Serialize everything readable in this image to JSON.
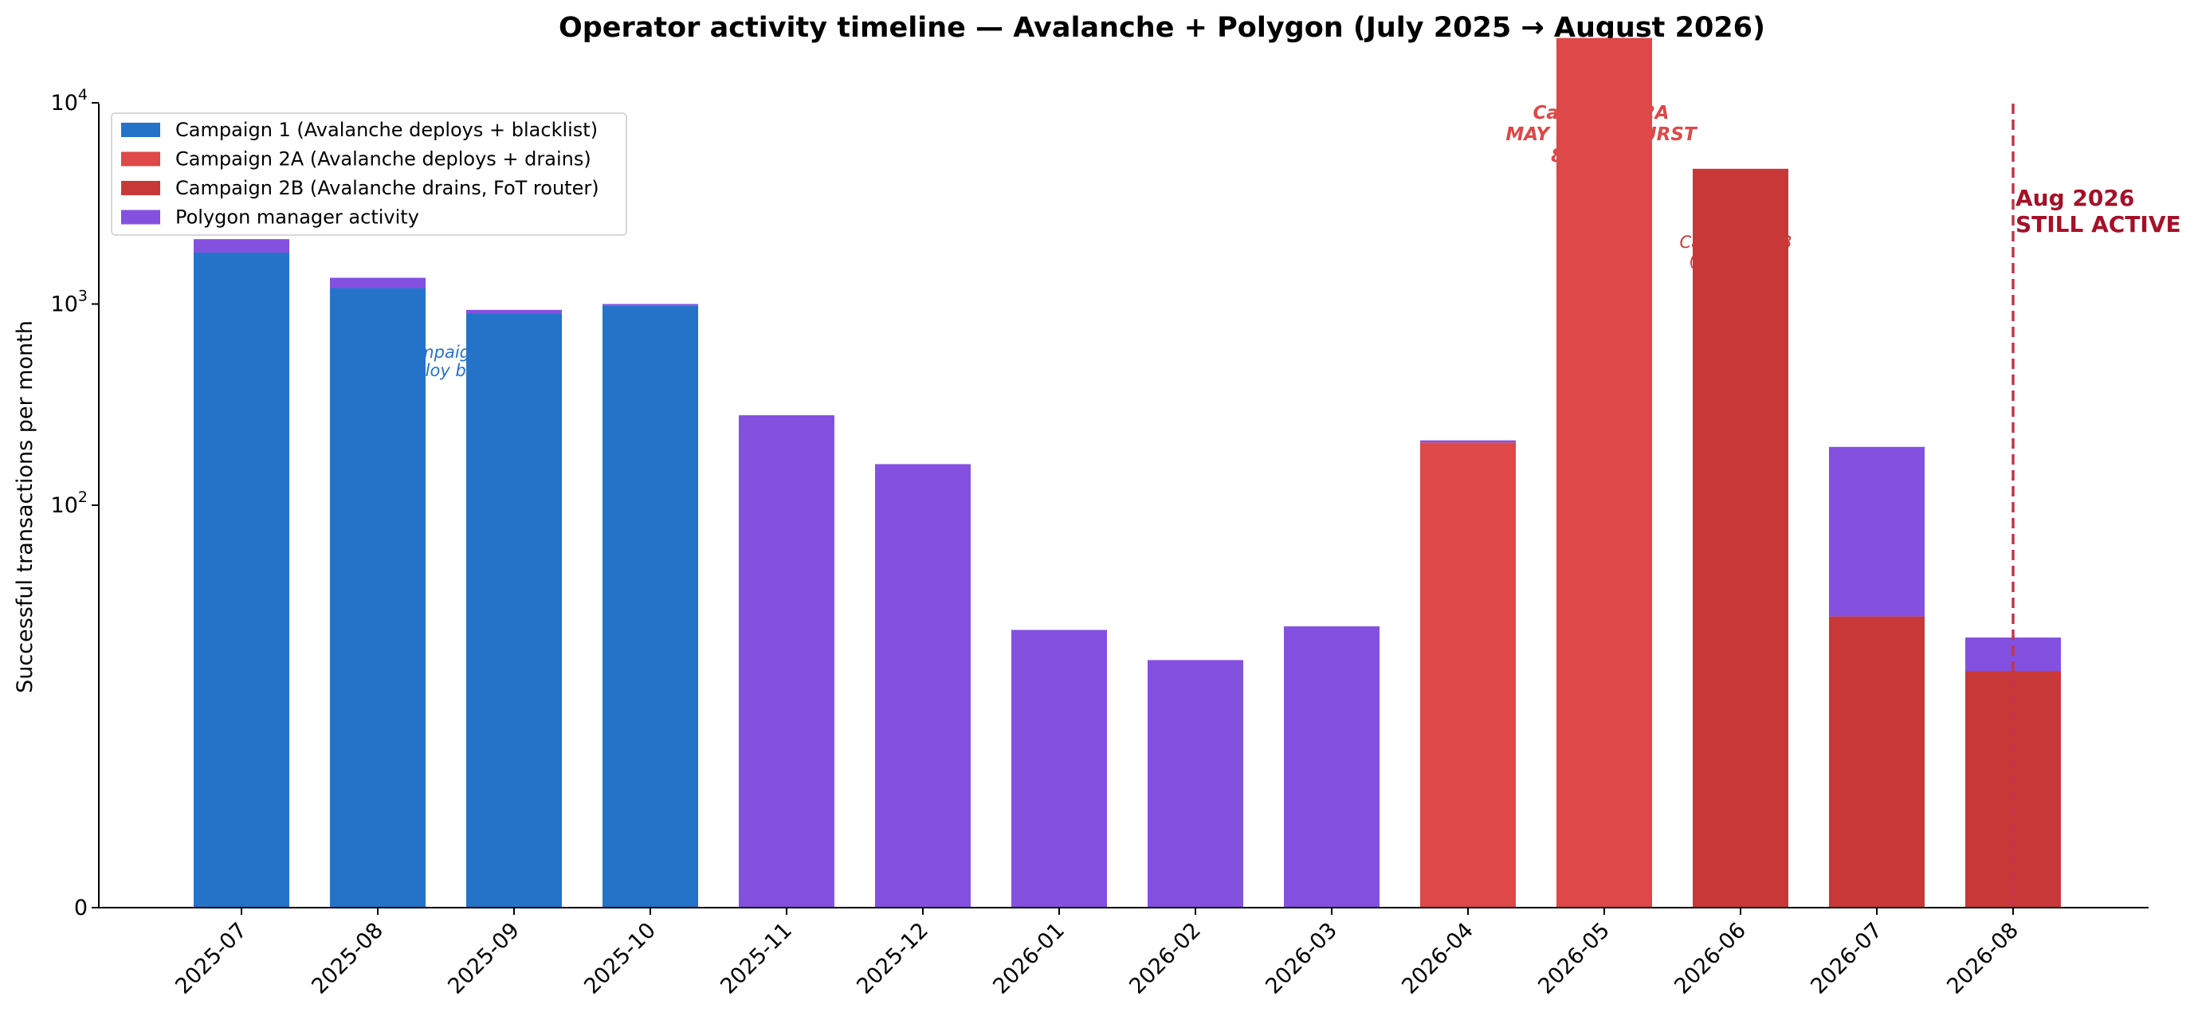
{
  "chart_data": {
    "type": "bar",
    "stacked": true,
    "title": "Operator activity timeline — Avalanche + Polygon (July 2025 → August 2026)",
    "ylabel": "Successful transactions per month",
    "xlabel": "",
    "yscale": "symlog",
    "ylim": [
      0,
      60000
    ],
    "ytick_labels": [
      "0",
      "10",
      "10",
      "10"
    ],
    "ytick_exponents": [
      "",
      "2",
      "3",
      "4"
    ],
    "categories": [
      "2025-07",
      "2025-08",
      "2025-09",
      "2025-10",
      "2025-11",
      "2025-12",
      "2026-01",
      "2026-02",
      "2026-03",
      "2026-04",
      "2026-05",
      "2026-06",
      "2026-07",
      "2026-08"
    ],
    "series": [
      {
        "name": "Campaign 1 (Avalanche deploys + blacklist)",
        "color": "#2473c8",
        "values": [
          1800,
          1200,
          900,
          980,
          0,
          0,
          0,
          0,
          0,
          0,
          0,
          0,
          0,
          0
        ]
      },
      {
        "name": "Campaign 2A (Avalanche deploys + drains)",
        "color": "#de4848",
        "values": [
          0,
          0,
          0,
          0,
          0,
          0,
          0,
          0,
          0,
          205,
          21000,
          0,
          0,
          0
        ]
      },
      {
        "name": "Campaign 2B (Avalanche drains, FoT router)",
        "color": "#c93838",
        "values": [
          0,
          0,
          0,
          0,
          0,
          0,
          0,
          0,
          0,
          0,
          0,
          4700,
          28,
          15
        ]
      },
      {
        "name": "Polygon manager activity",
        "color": "#8450e0",
        "values": [
          300,
          150,
          35,
          20,
          280,
          160,
          24,
          17,
          25,
          5,
          0,
          0,
          167,
          7
        ]
      }
    ],
    "legend_position": "top-left",
    "grid": false,
    "annotations": [
      {
        "lines": [
          "Campaign 1",
          "deploy burst"
        ],
        "color": "#2473c8",
        "bold": false
      },
      {
        "lines": [
          "Campaign 2A",
          "MAY DRAIN BURST",
          "8,000+ tx"
        ],
        "color": "#de4848",
        "bold": true
      },
      {
        "lines": [
          "Campaign 2B",
          "(FoT router",
          "variant)"
        ],
        "color": "#c93838",
        "bold": false
      },
      {
        "lines": [
          "Aug 2026",
          "STILL ACTIVE"
        ],
        "color": "#a51028",
        "bold": true
      }
    ],
    "vline": {
      "category": "2026-08",
      "color": "#c0364a",
      "style": "dashed"
    }
  }
}
